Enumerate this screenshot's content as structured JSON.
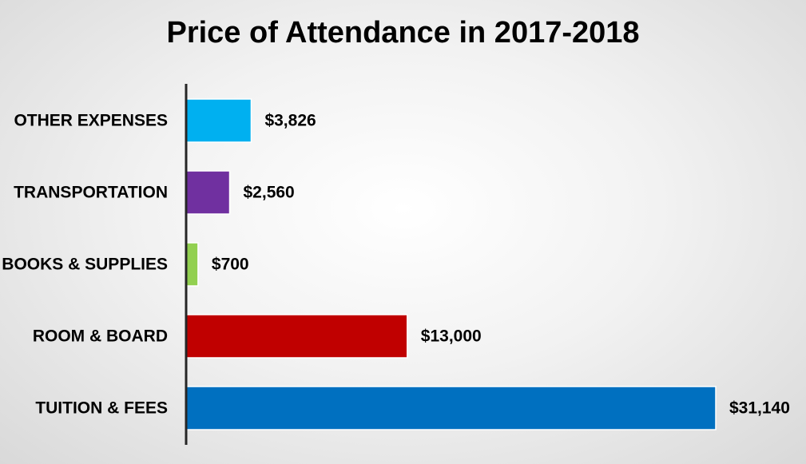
{
  "chart_data": {
    "type": "bar",
    "orientation": "horizontal",
    "title": "Price of Attendance in 2017-2018",
    "xlabel": "",
    "ylabel": "",
    "categories": [
      "OTHER EXPENSES",
      "TRANSPORTATION",
      "BOOKS & SUPPLIES",
      "ROOM & BOARD",
      "TUITION & FEES"
    ],
    "values": [
      3826,
      2560,
      700,
      13000,
      31140
    ],
    "data_labels": [
      "$3,826",
      "$2,560",
      "$700",
      "$13,000",
      "$31,140"
    ],
    "colors": [
      "#00B0F0",
      "#7030A0",
      "#92D050",
      "#C00000",
      "#0070C0"
    ],
    "xlim": [
      0,
      31140
    ],
    "grid": false,
    "legend": "none"
  }
}
